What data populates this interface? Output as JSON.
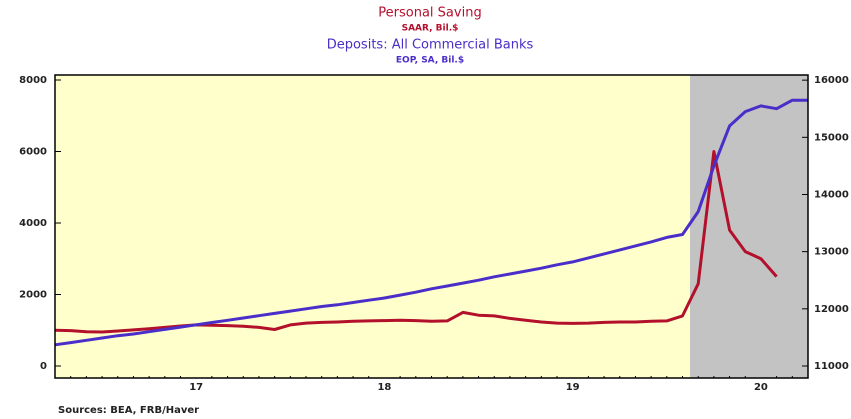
{
  "chart_data": {
    "type": "line",
    "source": "Sources:  BEA, FRB/Haver",
    "categories": [
      null,
      null,
      null,
      null,
      null,
      null,
      null,
      null,
      null,
      "17",
      null,
      null,
      null,
      null,
      null,
      null,
      null,
      null,
      null,
      null,
      null,
      "18",
      null,
      null,
      null,
      null,
      null,
      null,
      null,
      null,
      null,
      null,
      null,
      "19",
      null,
      null,
      null,
      null,
      null,
      null,
      null,
      null,
      null,
      null,
      null,
      "20",
      null,
      null,
      null
    ],
    "series": [
      {
        "name": "Personal Saving",
        "units": "SAAR, Bil.$",
        "color": "#b3102c",
        "axis": "y",
        "values": [
          1000,
          990,
          960,
          950,
          980,
          1010,
          1040,
          1080,
          1120,
          1150,
          1140,
          1130,
          1110,
          1080,
          1020,
          1150,
          1200,
          1220,
          1230,
          1250,
          1260,
          1270,
          1280,
          1270,
          1250,
          1260,
          1500,
          1420,
          1400,
          1330,
          1280,
          1230,
          1200,
          1190,
          1200,
          1220,
          1230,
          1230,
          1250,
          1260,
          1400,
          2300,
          6000,
          3800,
          3200,
          3000,
          2500,
          null,
          null
        ]
      },
      {
        "name": "Deposits: All Commercial Banks",
        "units": "EOP, SA, Bil.$",
        "color": "#4a2ec9",
        "axis": "y2",
        "values": [
          11370,
          11410,
          11450,
          11490,
          11530,
          11560,
          11600,
          11640,
          11680,
          11720,
          11760,
          11800,
          11840,
          11880,
          11920,
          11960,
          12000,
          12040,
          12070,
          12110,
          12150,
          12190,
          12240,
          12290,
          12350,
          12400,
          12450,
          12500,
          12560,
          12610,
          12660,
          12710,
          12770,
          12820,
          12890,
          12960,
          13030,
          13100,
          13170,
          13250,
          13300,
          13700,
          14500,
          15200,
          15450,
          15550,
          15500,
          15650,
          15650
        ]
      }
    ],
    "ylim": [
      -336,
      8140
    ],
    "yticks": [
      0,
      2000,
      4000,
      6000,
      8000
    ],
    "y2lim": [
      10790,
      16090
    ],
    "y2ticks": [
      11000,
      12000,
      13000,
      14000,
      15000,
      16000
    ]
  }
}
